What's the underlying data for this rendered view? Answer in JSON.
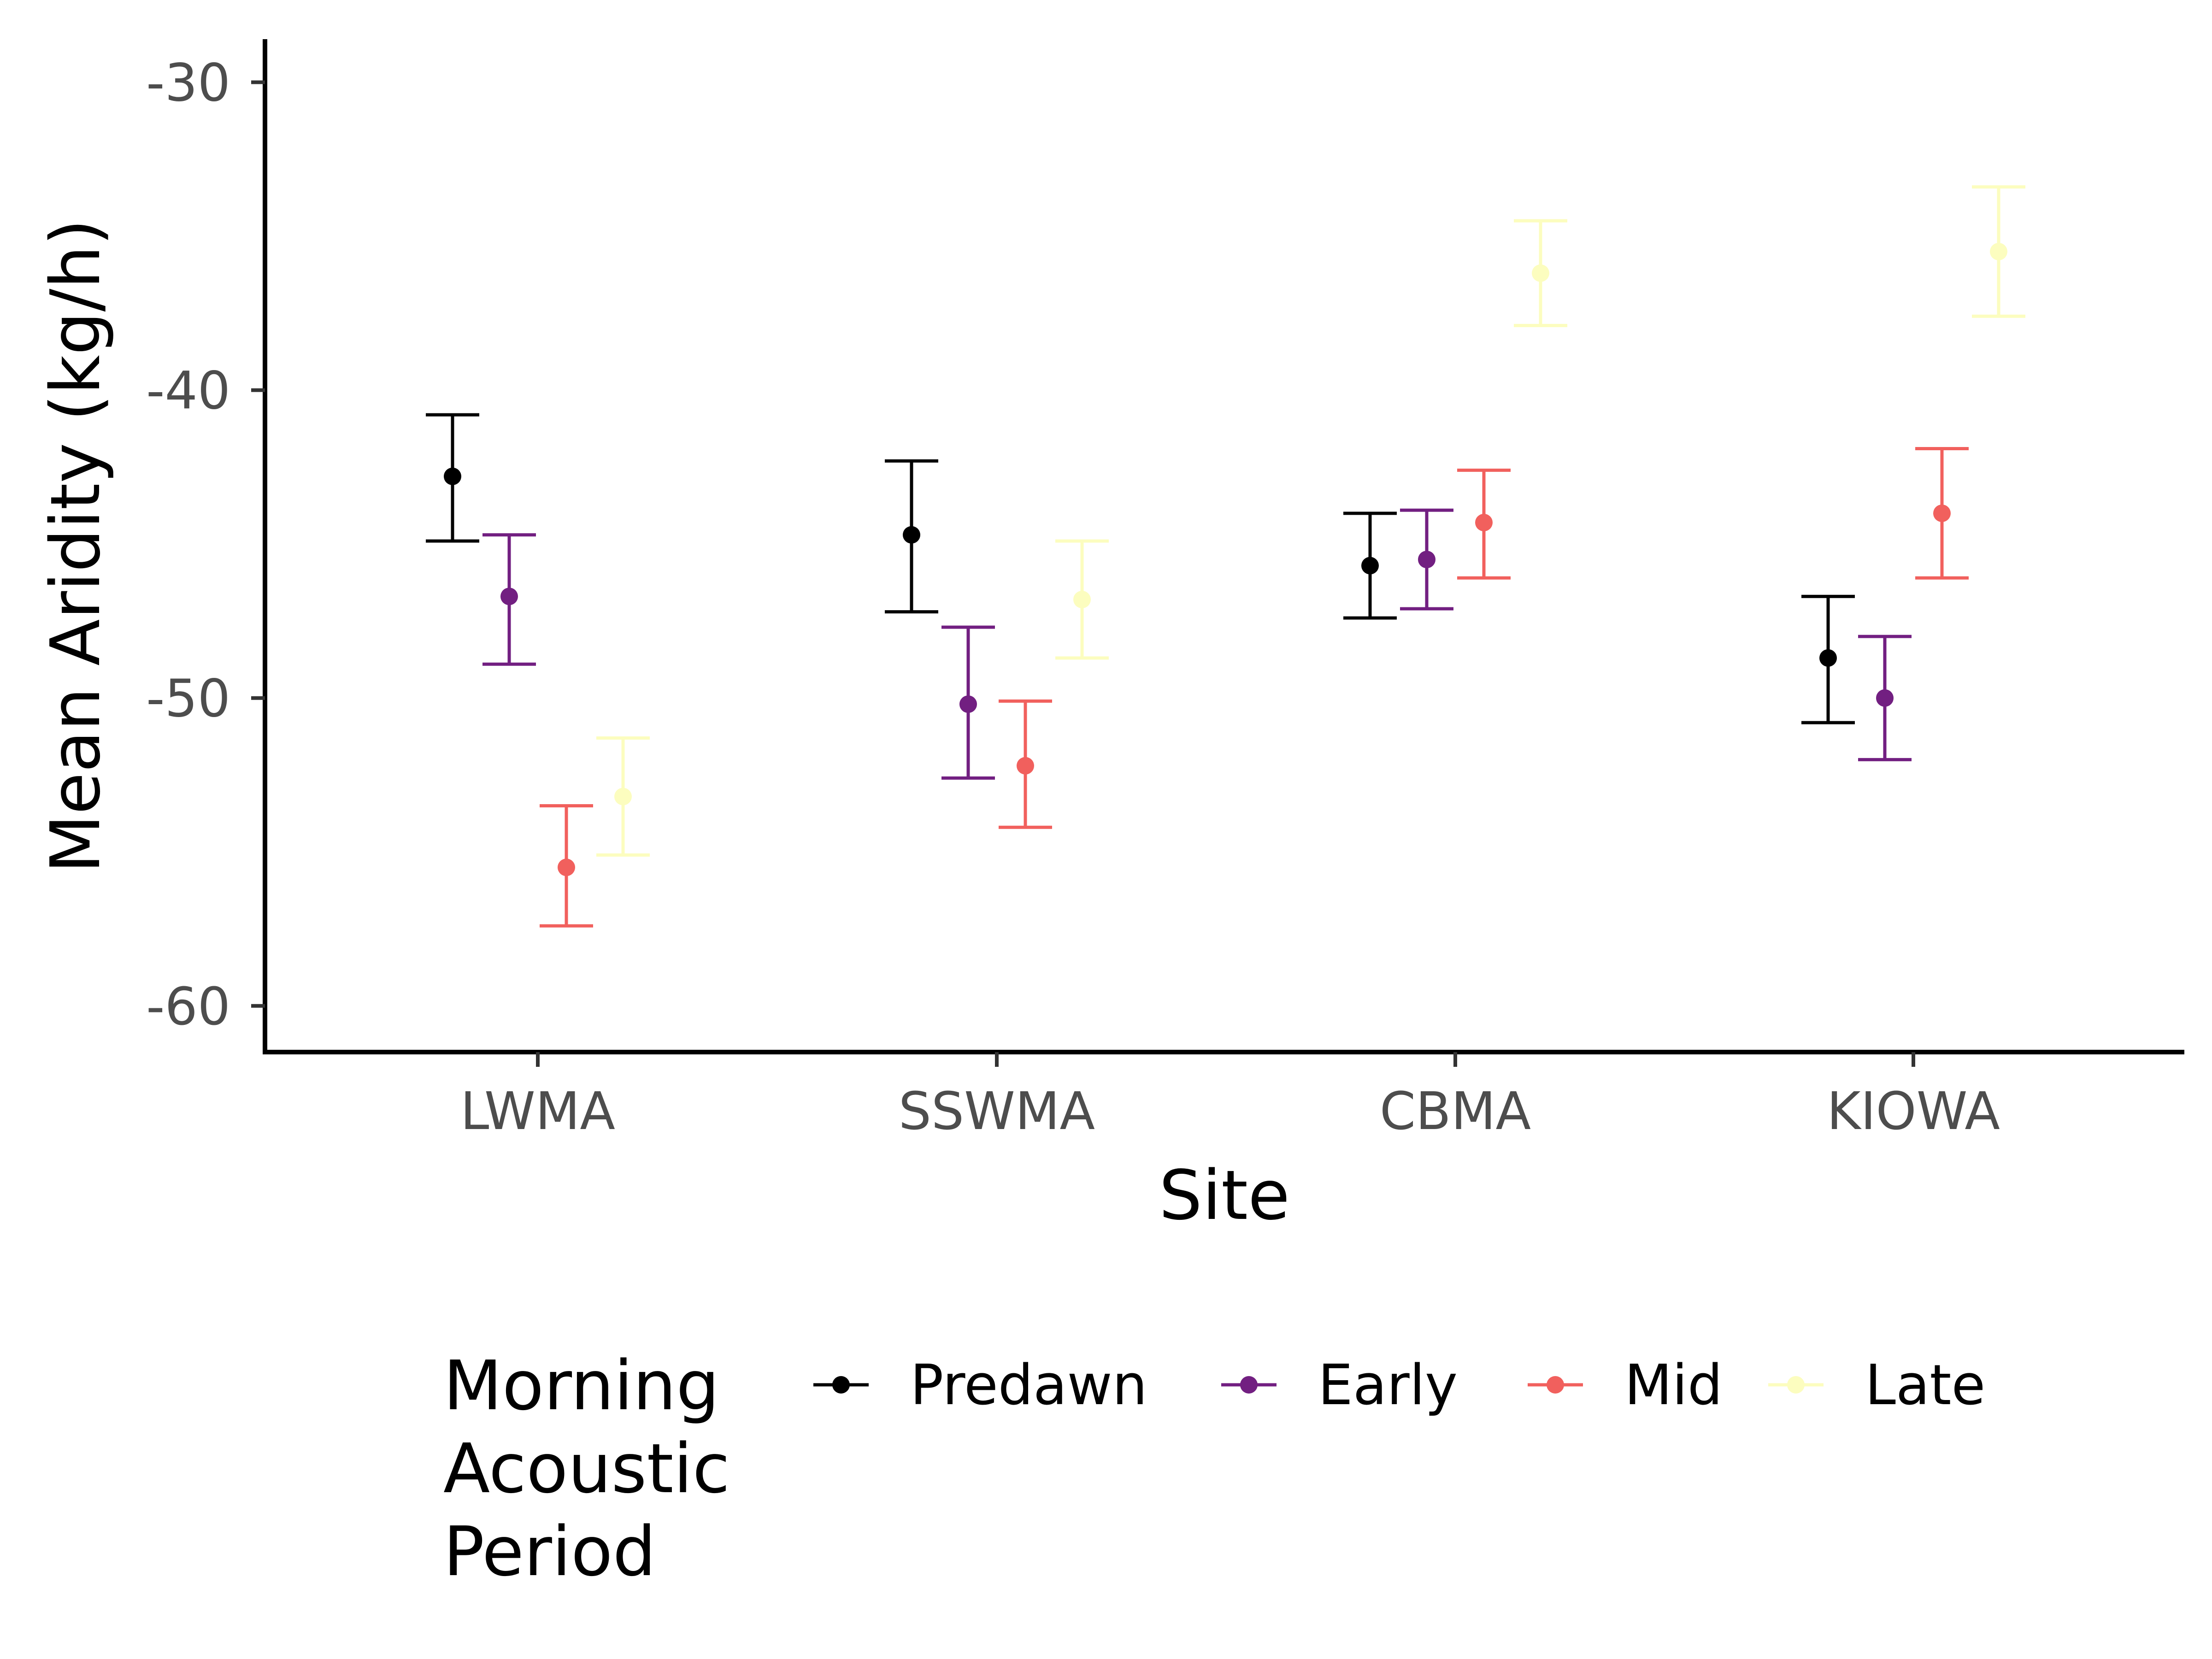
{
  "chart_data": {
    "type": "scatter",
    "categories": [
      "LWMA",
      "SSWMA",
      "CBMA",
      "KIOWA"
    ],
    "xlabel": "Site",
    "ylabel": "Mean Aridity (kg/h)",
    "ylim": [
      -61.5,
      -28.6
    ],
    "yticks": [
      "-30",
      "-40",
      "-50",
      "-60"
    ],
    "grid": false,
    "legend": {
      "title_lines": [
        "Morning",
        "Acoustic",
        "Period"
      ],
      "position": "bottom"
    },
    "series": [
      {
        "name": "Predawn",
        "color": "#000000",
        "values": [
          -42.8,
          -44.7,
          -45.7,
          -48.7
        ],
        "lower": [
          -44.9,
          -47.2,
          -47.4,
          -50.8
        ],
        "upper": [
          -40.8,
          -42.3,
          -44.0,
          -46.7
        ]
      },
      {
        "name": "Early",
        "color": "#721F81",
        "values": [
          -46.7,
          -50.2,
          -45.5,
          -50.0
        ],
        "lower": [
          -48.9,
          -52.6,
          -47.1,
          -52.0
        ],
        "upper": [
          -44.7,
          -47.7,
          -43.9,
          -48.0
        ]
      },
      {
        "name": "Mid",
        "color": "#F1605D",
        "values": [
          -55.5,
          -52.2,
          -44.3,
          -44.0
        ],
        "lower": [
          -57.4,
          -54.2,
          -46.1,
          -46.1
        ],
        "upper": [
          -53.5,
          -50.1,
          -42.6,
          -41.9
        ]
      },
      {
        "name": "Late",
        "color": "#FCFDBF",
        "values": [
          -53.2,
          -46.8,
          -36.2,
          -35.5
        ],
        "lower": [
          -55.1,
          -48.7,
          -37.9,
          -37.6
        ],
        "upper": [
          -51.3,
          -44.9,
          -34.5,
          -33.4
        ]
      }
    ]
  }
}
